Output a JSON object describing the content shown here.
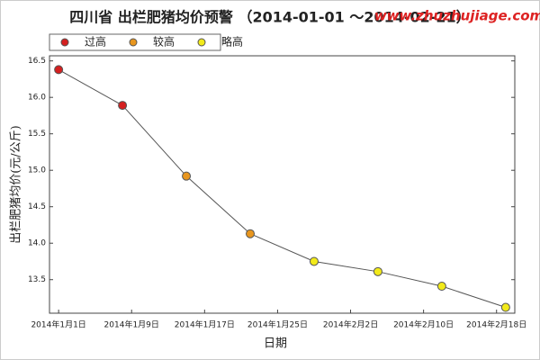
{
  "chart_data": {
    "type": "line",
    "title": "四川省 出栏肥猪均价预警 （2014-01-01 ～2014-02-21）",
    "watermark": "www.zhuzhujiage.com",
    "x_label": "日期",
    "y_label": "出栏肥猪均价(元/公斤)",
    "legend": [
      {
        "name": "过高",
        "color": "#d42020"
      },
      {
        "name": "较高",
        "color": "#e8961e"
      },
      {
        "name": "略高",
        "color": "#f2ea1a"
      }
    ],
    "x": [
      "2014-01-01",
      "2014-01-08",
      "2014-01-15",
      "2014-01-22",
      "2014-01-29",
      "2014-02-05",
      "2014-02-12",
      "2014-02-19"
    ],
    "series": [
      {
        "color": "#555555",
        "values": [
          16.38,
          15.89,
          14.92,
          14.13,
          13.75,
          13.61,
          13.41,
          13.12
        ],
        "levels": [
          0,
          0,
          1,
          1,
          2,
          2,
          2,
          2
        ]
      }
    ],
    "xlim": [
      "2013-12-31",
      "2014-02-20"
    ],
    "xticks": [
      {
        "value": "2014-01-01",
        "label": "2014年1月1日"
      },
      {
        "value": "2014-01-09",
        "label": "2014年1月9日"
      },
      {
        "value": "2014-01-17",
        "label": "2014年1月17日"
      },
      {
        "value": "2014-01-25",
        "label": "2014年1月25日"
      },
      {
        "value": "2014-02-02",
        "label": "2014年2月2日"
      },
      {
        "value": "2014-02-10",
        "label": "2014年2月10日"
      },
      {
        "value": "2014-02-18",
        "label": "2014年2月18日"
      }
    ],
    "ylim": [
      13.04,
      16.57
    ],
    "yticks": [
      13.5,
      {
        "value": 14,
        "label": "14.0"
      },
      14.5,
      {
        "value": 15,
        "label": "15.0"
      },
      15.5,
      {
        "value": 16,
        "label": "16.0"
      },
      16.5
    ]
  }
}
